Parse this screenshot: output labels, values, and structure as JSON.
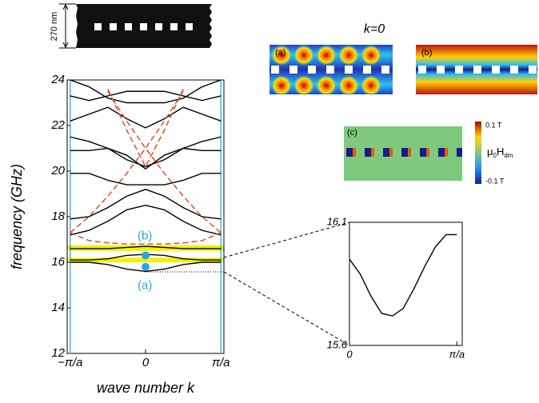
{
  "chart_data": [
    {
      "type": "line",
      "y_label": "frequency (GHz)",
      "x_label": "wave number k",
      "xlim": [
        -1.04,
        1.04
      ],
      "ylim": [
        12,
        24
      ],
      "yticks": [
        12,
        14,
        16,
        18,
        20,
        22,
        24
      ],
      "xticks": [
        {
          "value": -1,
          "label": "−π/a"
        },
        0,
        {
          "value": 1,
          "label": "π/a"
        }
      ],
      "boundary_color": "#4fb3e0",
      "highlight_bands": [
        [
          16.0,
          16.2
        ],
        [
          16.5,
          16.75
        ]
      ],
      "highlight_color": "#f2f200",
      "x": [
        -1,
        -0.75,
        -0.5,
        -0.25,
        0,
        0.25,
        0.5,
        0.75,
        1
      ],
      "series": [
        {
          "color": "#000000",
          "dash": false,
          "values": [
            16.0,
            16.0,
            15.9,
            15.7,
            15.6,
            15.7,
            15.9,
            16.0,
            16.0
          ]
        },
        {
          "color": "#000000",
          "dash": false,
          "values": [
            16.1,
            16.1,
            16.15,
            16.3,
            16.35,
            16.3,
            16.15,
            16.1,
            16.1
          ]
        },
        {
          "color": "#000000",
          "dash": false,
          "values": [
            16.6,
            16.6,
            16.6,
            16.65,
            16.7,
            16.65,
            16.6,
            16.6,
            16.6
          ]
        },
        {
          "color": "#000000",
          "dash": false,
          "values": [
            17.2,
            17.4,
            17.8,
            18.3,
            18.5,
            18.3,
            17.8,
            17.4,
            17.2
          ]
        },
        {
          "color": "#000000",
          "dash": false,
          "values": [
            17.9,
            18.0,
            18.4,
            18.9,
            19.2,
            18.9,
            18.4,
            18.0,
            17.9
          ]
        },
        {
          "color": "#000000",
          "dash": false,
          "values": [
            19.9,
            19.9,
            19.6,
            19.4,
            19.4,
            19.4,
            19.6,
            19.9,
            19.9
          ]
        },
        {
          "color": "#000000",
          "dash": false,
          "values": [
            20.9,
            20.9,
            21.0,
            20.7,
            20.1,
            20.7,
            21.0,
            20.9,
            20.9
          ]
        },
        {
          "color": "#000000",
          "dash": false,
          "values": [
            21.5,
            21.3,
            21.0,
            20.5,
            20.2,
            20.5,
            21.0,
            21.3,
            21.5
          ]
        },
        {
          "color": "#000000",
          "dash": false,
          "values": [
            22.2,
            22.5,
            22.8,
            22.3,
            21.9,
            22.3,
            22.8,
            22.5,
            22.2
          ]
        },
        {
          "color": "#000000",
          "dash": false,
          "values": [
            23.3,
            23.1,
            23.3,
            23.5,
            23.5,
            23.5,
            23.3,
            23.1,
            23.3
          ]
        },
        {
          "color": "#000000",
          "dash": false,
          "values": [
            24.0,
            23.7,
            23.2,
            23.0,
            23.0,
            23.0,
            23.2,
            23.7,
            24.0
          ]
        },
        {
          "color": "#e0401e",
          "dash": true,
          "values": [
            17.3,
            18.0,
            18.9,
            19.9,
            21.0,
            22.2,
            23.5,
            null,
            null
          ]
        },
        {
          "color": "#e0401e",
          "dash": true,
          "values": [
            null,
            null,
            23.5,
            22.2,
            21.0,
            19.9,
            18.9,
            18.0,
            17.3
          ]
        },
        {
          "color": "#e0401e",
          "dash": true,
          "values": [
            null,
            null,
            23.6,
            21.8,
            20.2,
            21.8,
            23.6,
            null,
            null
          ]
        },
        {
          "color": "#e0401e",
          "dash": true,
          "values": [
            17.3,
            16.95,
            16.85,
            16.8,
            16.8,
            16.8,
            16.85,
            16.95,
            17.3
          ]
        }
      ],
      "points": [
        {
          "label": "(a)",
          "x": 0,
          "y": 15.8
        },
        {
          "label": "(b)",
          "x": 0,
          "y": 16.3
        }
      ],
      "point_color": "#29a8e0"
    },
    {
      "type": "line",
      "xlim": [
        0,
        1.05
      ],
      "ylim": [
        15.6,
        16.1
      ],
      "yticks": [
        15.6,
        16.1
      ],
      "xticks": [
        0,
        {
          "value": 1,
          "label": "π/a"
        }
      ],
      "x": [
        0,
        0.1,
        0.2,
        0.3,
        0.4,
        0.5,
        0.6,
        0.7,
        0.8,
        0.9,
        1
      ],
      "series": [
        {
          "color": "#000000",
          "dash": false,
          "values": [
            15.95,
            15.89,
            15.8,
            15.73,
            15.72,
            15.75,
            15.83,
            15.92,
            16.0,
            16.05,
            16.05
          ]
        }
      ]
    }
  ],
  "schematic": {
    "thickness_label": "270 nm"
  },
  "field_maps": {
    "title": "k=0",
    "labels": [
      "(a)",
      "(b)",
      "(c)"
    ],
    "colorbar": {
      "max_label": "0.1 T",
      "min_label": "-0.1 T",
      "symbol": "μ",
      "symbol_sub": "0",
      "field": "H",
      "field_sub": "dm"
    }
  }
}
